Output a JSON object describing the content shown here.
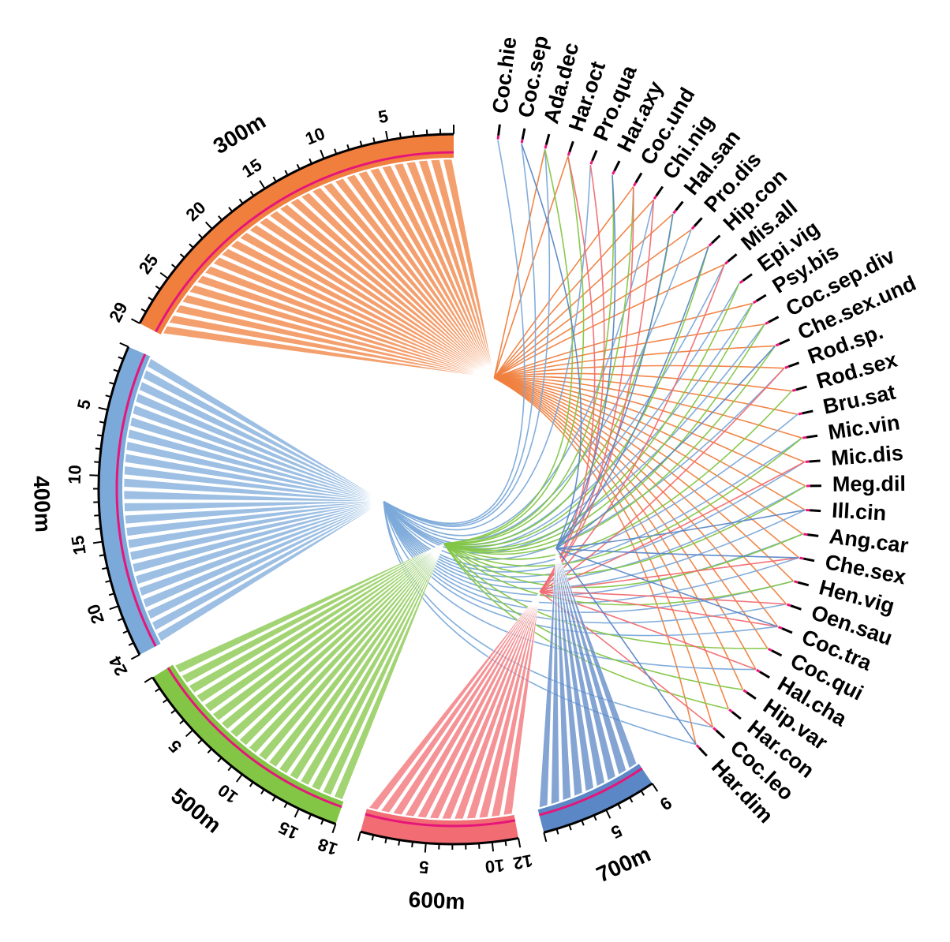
{
  "chart_data": {
    "type": "chord",
    "title": "",
    "segments": [
      {
        "name": "300m",
        "count": 29,
        "color": "#f07f3e",
        "ticks": [
          5,
          10,
          15,
          20,
          25,
          29
        ]
      },
      {
        "name": "400m",
        "count": 24,
        "color": "#7ba9d9",
        "ticks": [
          5,
          10,
          15,
          20,
          24
        ]
      },
      {
        "name": "500m",
        "count": 18,
        "color": "#83c646",
        "ticks": [
          5,
          10,
          15,
          18
        ]
      },
      {
        "name": "600m",
        "count": 12,
        "color": "#f16d73",
        "ticks": [
          5,
          10,
          12
        ]
      },
      {
        "name": "700m",
        "count": 9,
        "color": "#5b87c6",
        "ticks": [
          5,
          9
        ]
      }
    ],
    "species": [
      "Coc.hie",
      "Coc.sep",
      "Ada.dec",
      "Har.oct",
      "Pro.qua",
      "Har.axy",
      "Coc.und",
      "Chi.nig",
      "Hal.san",
      "Pro.dis",
      "Hip.con",
      "Mis.all",
      "Epi.vig",
      "Psy.bis",
      "Coc.sep.div",
      "Che.sex.und",
      "Rod.sp.",
      "Rod.sex",
      "Bru.sat",
      "Mic.vin",
      "Mic.dis",
      "Meg.dil",
      "Ill.cin",
      "Ang.car",
      "Che.sex",
      "Hen.vig",
      "Oen.sau",
      "Coc.tra",
      "Coc.qui",
      "Hal.cha",
      "Hip.var",
      "Har.con",
      "Coc.leo",
      "Har.dim"
    ],
    "links": {
      "300m": [
        "Ada.dec",
        "Coc.und",
        "Chi.nig",
        "Hal.san",
        "Pro.dis",
        "Hip.con",
        "Mis.all",
        "Psy.bis",
        "Coc.sep.div",
        "Che.sex.und",
        "Rod.sp.",
        "Rod.sex",
        "Bru.sat",
        "Mic.vin",
        "Mic.dis",
        "Meg.dil",
        "Ill.cin",
        "Ang.car",
        "Che.sex",
        "Hen.vig",
        "Oen.sau",
        "Coc.tra",
        "Coc.qui",
        "Hal.cha",
        "Hip.var",
        "Har.con",
        "Coc.leo",
        "Har.dim",
        "Har.oct"
      ],
      "400m": [
        "Coc.hie",
        "Coc.sep",
        "Ada.dec",
        "Pro.qua",
        "Chi.nig",
        "Pro.dis",
        "Mis.all",
        "Epi.vig",
        "Psy.bis",
        "Coc.sep.div",
        "Rod.sp.",
        "Bru.sat",
        "Mic.vin",
        "Mic.dis",
        "Meg.dil",
        "Ill.cin",
        "Ang.car",
        "Che.sex",
        "Hen.vig",
        "Oen.sau",
        "Coc.tra",
        "Hal.cha",
        "Coc.leo",
        "Har.dim"
      ],
      "500m": [
        "Ada.dec",
        "Har.oct",
        "Har.axy",
        "Coc.und",
        "Hal.san",
        "Hip.con",
        "Epi.vig",
        "Psy.bis",
        "Coc.sep.div",
        "Che.sex.und",
        "Rod.sex",
        "Mic.vin",
        "Meg.dil",
        "Ang.car",
        "Hen.vig",
        "Coc.qui",
        "Hip.var",
        "Har.con"
      ],
      "600m": [
        "Har.oct",
        "Pro.qua",
        "Coc.und",
        "Chi.nig",
        "Mis.all",
        "Rod.sp.",
        "Mic.dis",
        "Che.sex",
        "Oen.sau",
        "Coc.tra",
        "Hal.cha",
        "Coc.leo"
      ],
      "700m": [
        "Coc.sep",
        "Har.axy",
        "Hal.san",
        "Hip.con",
        "Che.sex.und",
        "Ill.cin",
        "Che.sex",
        "Coc.tra",
        "Har.dim"
      ]
    }
  }
}
